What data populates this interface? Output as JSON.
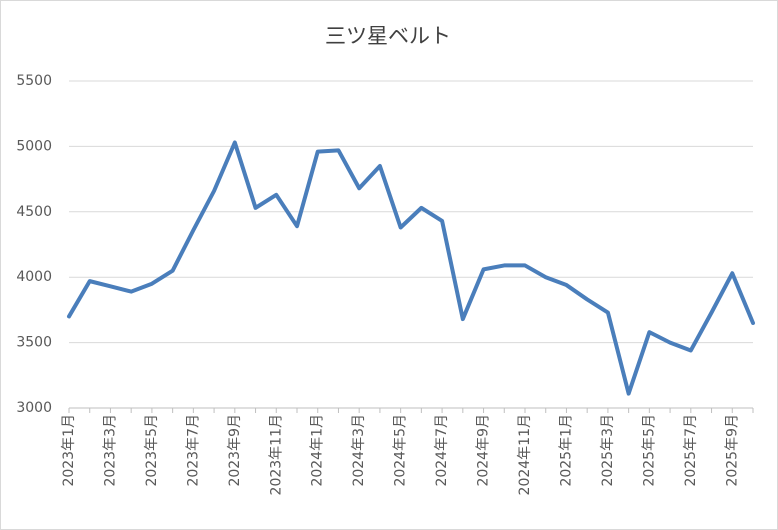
{
  "chart_data": {
    "type": "line",
    "title": "三ツ星ベルト",
    "categories": [
      "2023年1月",
      null,
      "2023年3月",
      null,
      "2023年5月",
      null,
      "2023年7月",
      null,
      "2023年9月",
      null,
      "2023年11月",
      null,
      "2024年1月",
      null,
      "2024年3月",
      null,
      "2024年5月",
      null,
      "2024年7月",
      null,
      "2024年9月",
      null,
      "2024年11月",
      null,
      "2025年1月",
      null,
      "2025年3月",
      null,
      "2025年5月",
      null,
      "2025年7月",
      null,
      "2025年9月",
      null
    ],
    "series": [
      {
        "color": "#4a7ebb",
        "values": [
          3700,
          3970,
          3930,
          3890,
          3950,
          4050,
          4360,
          4660,
          5030,
          4530,
          4630,
          4390,
          4960,
          4970,
          4680,
          4850,
          4380,
          4530,
          4430,
          3680,
          4060,
          4090,
          4090,
          4000,
          3940,
          3830,
          3730,
          3110,
          3580,
          3500,
          3440,
          3730,
          4030,
          3650
        ]
      }
    ],
    "ylim": [
      3000,
      5500
    ],
    "yticks": [
      3000,
      3500,
      4000,
      4500,
      5000,
      5500
    ],
    "grid": true
  }
}
